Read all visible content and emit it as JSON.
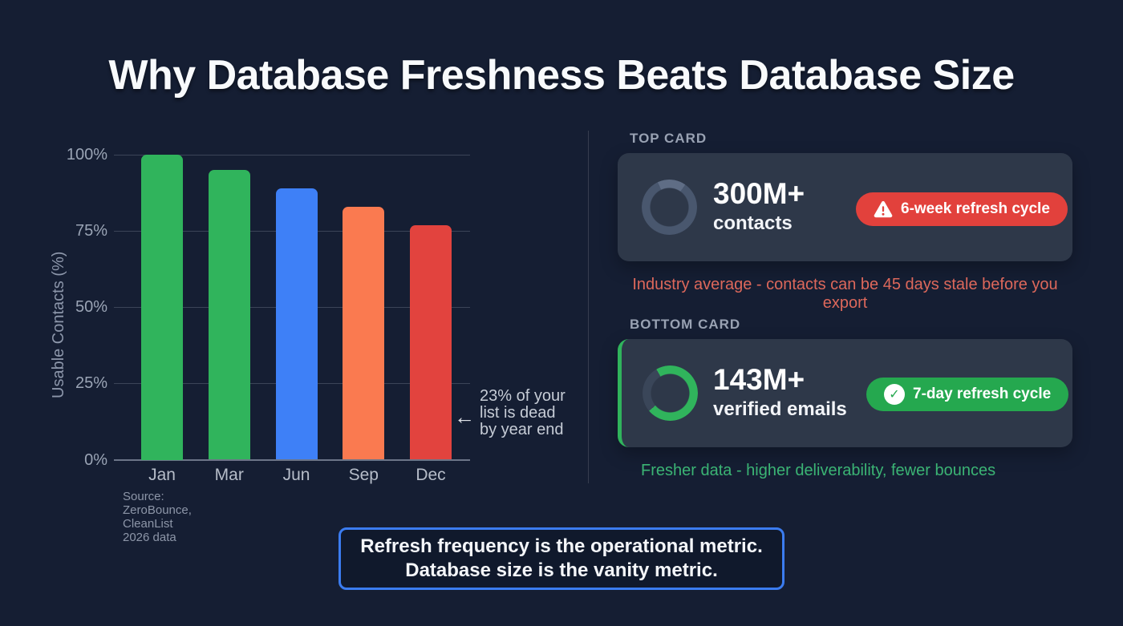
{
  "title": "Why Database Freshness Beats Database Size",
  "chart_data": {
    "type": "bar",
    "categories": [
      "Jan",
      "Mar",
      "Jun",
      "Sep",
      "Dec"
    ],
    "values": [
      100,
      95,
      89,
      83,
      77
    ],
    "bar_colors": [
      "#30b45c",
      "#30b45c",
      "#3e80f7",
      "#fa7a50",
      "#e2433e"
    ],
    "title": "",
    "xlabel": "",
    "ylabel": "Usable Contacts (%)",
    "ylim": [
      0,
      100
    ],
    "yticks": [
      0,
      25,
      50,
      75,
      100
    ],
    "ytick_suffix": "%",
    "grid": true,
    "legend": false,
    "source": "Source: ZeroBounce, CleanList 2026 data",
    "annotation": {
      "arrow": "←",
      "lines": [
        "23% of your",
        "list is dead",
        "by year end"
      ]
    }
  },
  "right_panel": {
    "top_section": {
      "label": "TOP CARD",
      "stat_value": "300M+",
      "stat_label": "contacts",
      "badge": {
        "text": "6-week refresh cycle",
        "color": "#e2413c",
        "icon": "warning-triangle"
      },
      "caption": "Industry average - contacts can be 45 days stale before you export",
      "caption_color": "#dd685b",
      "ring": {
        "start_deg": 335,
        "arc_degrees": 60,
        "progress_color": "#5f6d85",
        "track_color": "#49576e"
      }
    },
    "bottom_section": {
      "label": "BOTTOM CARD",
      "stat_value": "143M+",
      "stat_label": "verified emails",
      "badge": {
        "text": "7-day refresh cycle",
        "color": "#25a84f",
        "icon": "check-circle",
        "check_glyph": "✓"
      },
      "caption": "Fresher data - higher deliverability, fewer bounces",
      "caption_color": "#3bb474",
      "accent_border_color": "#30b45c",
      "ring": {
        "start_deg": 330,
        "arc_degrees": 260,
        "progress_color": "#30b45c",
        "track_color": "#3a4659"
      }
    }
  },
  "footer_quote": {
    "line1": "Refresh frequency is the operational metric.",
    "line2": "Database size is the vanity metric.",
    "border_color": "#3b7cf0"
  }
}
